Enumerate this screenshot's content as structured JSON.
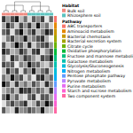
{
  "chart_data": {
    "type": "heatmap",
    "tick_labels": false,
    "color_range": [
      -2,
      2
    ],
    "habitat": {
      "title": "Habitat",
      "groups": [
        {
          "name": "Bulk soil",
          "color": "#f08a80"
        },
        {
          "name": "Rhizosphere soil",
          "color": "#5cc3bf"
        }
      ],
      "columns": [
        "Bulk soil",
        "Bulk soil",
        "Bulk soil",
        "Bulk soil",
        "Bulk soil",
        "Bulk soil",
        "Rhizosphere soil",
        "Rhizosphere soil",
        "Rhizosphere soil",
        "Rhizosphere soil",
        "Rhizosphere soil",
        "Rhizosphere soil"
      ]
    },
    "pathway": {
      "title": "Pathway",
      "names": [
        "ABC transporters",
        "Aminoacid metabolism",
        "Bacterial chemotaxis",
        "Bacterial secretion system",
        "Citrate cycle",
        "Oxidative phosphorylation",
        "Fructose and mannose metabolism",
        "Galactose metabolism",
        "Glycolysis/Gluconeogenesis",
        "Nitrogen metabolism",
        "Pentose phosphate pathway",
        "Pyruvate metabolism",
        "Purine metabolism",
        "Starch and sucrose metabolism",
        "Two component system"
      ],
      "colors": [
        "#f8766d",
        "#e58700",
        "#c99800",
        "#a3a500",
        "#6bb100",
        "#00ba38",
        "#00bf7d",
        "#00c0af",
        "#00bcd8",
        "#00b0f6",
        "#619cff",
        "#b983ff",
        "#e76bf3",
        "#fd61d1",
        "#ff67a4"
      ]
    },
    "cells": [
      [
        1.2,
        -0.4,
        0.8,
        1.6,
        -1.0,
        0.3,
        -1.4,
        0.6,
        -0.2,
        1.0,
        -1.6,
        0.4
      ],
      [
        -0.6,
        1.4,
        0.2,
        -1.2,
        0.9,
        -0.3,
        1.1,
        -0.8,
        1.7,
        -0.5,
        0.2,
        -1.3
      ],
      [
        0.4,
        0.9,
        -1.5,
        0.6,
        1.8,
        -0.7,
        0.3,
        1.2,
        -0.9,
        -0.1,
        1.5,
        0.7
      ],
      [
        -1.3,
        0.1,
        1.0,
        -0.4,
        -0.2,
        1.6,
        -0.6,
        0.0,
        0.8,
        1.3,
        -0.7,
        -1.8
      ],
      [
        0.7,
        -1.1,
        -0.3,
        1.9,
        0.5,
        -0.9,
        1.4,
        -1.2,
        0.1,
        0.6,
        1.0,
        -0.4
      ],
      [
        1.5,
        0.6,
        -0.8,
        -0.5,
        1.2,
        0.4,
        -1.0,
        0.9,
        1.3,
        -1.4,
        -0.3,
        0.8
      ],
      [
        -0.2,
        -1.6,
        1.3,
        0.2,
        -0.7,
        1.1,
        0.5,
        -0.4,
        -1.3,
        0.9,
        0.4,
        1.6
      ],
      [
        0.9,
        0.3,
        0.6,
        -1.7,
        0.0,
        -0.5,
        1.7,
        0.3,
        0.5,
        -0.8,
        -1.2,
        0.1
      ],
      [
        -1.0,
        1.2,
        -0.1,
        0.8,
        -1.4,
        0.7,
        -0.2,
        1.5,
        -0.6,
        0.2,
        0.9,
        -0.9
      ],
      [
        0.2,
        -0.7,
        1.7,
        0.1,
        0.8,
        -1.3,
        0.0,
        -1.6,
        1.0,
        1.4,
        -0.5,
        0.3
      ],
      [
        1.8,
        0.5,
        -1.1,
        1.1,
        -0.6,
        0.2,
        -0.8,
        0.7,
        -0.1,
        -1.1,
        1.3,
        -0.2
      ],
      [
        -0.8,
        -0.2,
        0.4,
        -0.9,
        1.5,
        0.9,
        1.2,
        -0.3,
        0.6,
        0.0,
        -1.0,
        1.2
      ],
      [
        0.3,
        1.7,
        -0.6,
        0.5,
        -1.1,
        -1.5,
        0.4,
        1.0,
        -1.5,
        0.7,
        0.6,
        -0.6
      ],
      [
        -1.5,
        0.0,
        0.9,
        -0.1,
        0.4,
        1.3,
        -1.2,
        -0.7,
        0.9,
        -0.3,
        1.8,
        0.5
      ],
      [
        0.6,
        -0.9,
        -1.3,
        1.4,
        -0.3,
        0.0,
        0.8,
        0.2,
        -0.4,
        1.6,
        -0.8,
        -1.1
      ]
    ]
  }
}
